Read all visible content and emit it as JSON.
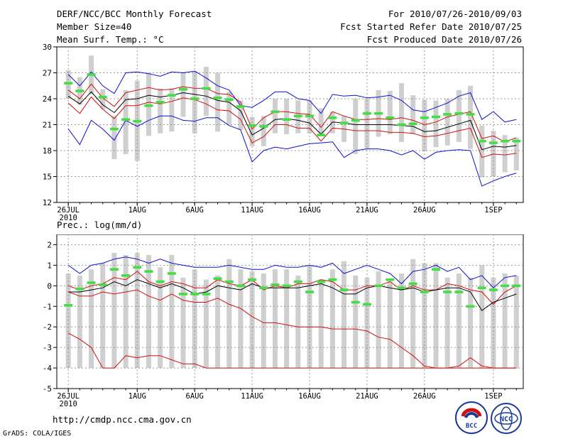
{
  "header": {
    "title": "DERF/NCC/BCC Monthly Forecast",
    "member_size": "Member Size=40",
    "variable_top": "Mean Surf. Temp.: °C",
    "for_period": "For 2010/07/26-2010/09/03",
    "fcst_started": "Fcst Started Refer Date 2010/07/25",
    "fcst_produced": "Fcst Produced Date 2010/07/26"
  },
  "footer": {
    "url": "http://cmdp.ncc.cma.gov.cn",
    "grads_credit": "GrADS: COLA/IGES",
    "logo_bcc": "BCC",
    "logo_ncc": "NCC"
  },
  "colors": {
    "box": "#cfcfcf",
    "mean_marker": "#44dd44",
    "envelope": "#1010d0",
    "spread": "#d01010",
    "median": "#000000",
    "grid": "#999999"
  },
  "chart_data": [
    {
      "type": "boxplot",
      "title": "Mean Surf. Temp.: °C",
      "xlabel": "",
      "ylabel": "°C",
      "ylim": [
        12,
        30
      ],
      "yticks": [
        12,
        15,
        18,
        21,
        24,
        27,
        30
      ],
      "xlim": [
        -1,
        39.6
      ],
      "xticks": [
        {
          "day": 0,
          "label": "26JUL",
          "sublabel": "2010"
        },
        {
          "day": 6,
          "label": "1AUG"
        },
        {
          "day": 11,
          "label": "6AUG"
        },
        {
          "day": 16,
          "label": "11AUG"
        },
        {
          "day": 21,
          "label": "16AUG"
        },
        {
          "day": 26,
          "label": "21AUG"
        },
        {
          "day": 31,
          "label": "26AUG"
        },
        {
          "day": 37,
          "label": "1SEP"
        }
      ],
      "grid": true,
      "days": [
        0,
        1,
        2,
        3,
        4,
        5,
        6,
        7,
        8,
        9,
        10,
        11,
        12,
        13,
        14,
        15,
        16,
        17,
        18,
        19,
        20,
        21,
        22,
        23,
        24,
        25,
        26,
        27,
        28,
        29,
        30,
        31,
        32,
        33,
        34,
        35,
        36,
        37,
        38,
        39
      ],
      "box_low": [
        24.0,
        23.3,
        24.5,
        22.8,
        17.0,
        17.6,
        16.8,
        19.7,
        20.0,
        20.2,
        21.9,
        20.0,
        22.0,
        20.2,
        21.0,
        20.4,
        18.5,
        18.5,
        20.0,
        19.9,
        20.0,
        20.0,
        20.0,
        20.0,
        19.0,
        17.6,
        18.2,
        19.6,
        19.9,
        19.0,
        19.9,
        17.9,
        18.4,
        18.6,
        19.0,
        18.2,
        14.9,
        15.0,
        15.5,
        15.7
      ],
      "box_high": [
        27.3,
        26.5,
        29.0,
        25.1,
        22.0,
        25.0,
        26.1,
        27.0,
        25.2,
        25.2,
        27.1,
        27.2,
        27.7,
        27.0,
        24.8,
        23.8,
        21.9,
        22.0,
        24.0,
        24.0,
        23.8,
        23.8,
        22.9,
        22.5,
        22.0,
        24.0,
        24.0,
        25.0,
        24.9,
        25.8,
        24.4,
        23.9,
        23.8,
        24.0,
        25.0,
        25.5,
        20.9,
        20.3,
        19.8,
        19.5
      ],
      "mean": [
        25.8,
        24.9,
        26.8,
        24.2,
        20.5,
        21.6,
        21.4,
        23.2,
        23.6,
        24.4,
        25.1,
        24.0,
        25.2,
        24.1,
        23.9,
        23.1,
        20.9,
        20.8,
        22.5,
        21.6,
        22.0,
        22.0,
        19.8,
        21.8,
        21.2,
        21.5,
        22.3,
        22.3,
        21.8,
        21.0,
        21.1,
        21.8,
        21.9,
        22.2,
        22.3,
        22.2,
        19.1,
        18.9,
        19.1,
        19.1
      ],
      "series": [
        {
          "name": "max",
          "color": "#1010d0",
          "values": [
            20.5,
            18.7,
            21.5,
            20.5,
            19.2,
            21.5,
            20.8,
            21.5,
            22.0,
            22.0,
            21.5,
            21.4,
            21.8,
            21.8,
            20.9,
            20.4,
            16.7,
            18.0,
            18.4,
            18.2,
            18.5,
            18.8,
            18.9,
            19.0,
            17.2,
            18.0,
            18.2,
            18.2,
            18.0,
            17.5,
            18.0,
            17.0,
            17.8,
            18.0,
            18.1,
            18.0,
            13.9,
            14.5,
            15.0,
            15.4
          ]
        },
        {
          "name": "p75",
          "color": "#d01010",
          "values": [
            25.0,
            24.0,
            25.7,
            24.1,
            23.1,
            24.7,
            25.0,
            25.3,
            25.0,
            25.1,
            25.4,
            25.2,
            25.2,
            24.6,
            24.5,
            23.6,
            20.5,
            21.8,
            22.5,
            22.5,
            22.3,
            22.2,
            20.7,
            22.5,
            22.0,
            21.6,
            21.6,
            21.7,
            21.6,
            21.8,
            21.5,
            21.0,
            21.3,
            21.9,
            22.2,
            22.5,
            19.4,
            19.7,
            19.0,
            19.5
          ]
        },
        {
          "name": "median",
          "color": "#000000",
          "values": [
            24.3,
            23.4,
            24.8,
            23.3,
            22.4,
            23.9,
            24.0,
            24.4,
            24.2,
            24.4,
            24.7,
            24.5,
            24.3,
            23.8,
            23.6,
            22.6,
            19.8,
            20.6,
            21.6,
            21.7,
            21.5,
            21.2,
            19.9,
            21.3,
            21.2,
            21.0,
            21.0,
            21.0,
            21.0,
            20.9,
            20.8,
            20.2,
            20.3,
            20.7,
            21.1,
            21.5,
            18.1,
            18.5,
            18.4,
            18.6
          ]
        },
        {
          "name": "p25",
          "color": "#d01010",
          "values": [
            23.5,
            22.3,
            24.2,
            22.8,
            21.7,
            23.2,
            23.2,
            23.6,
            23.4,
            23.7,
            24.1,
            23.9,
            23.4,
            22.7,
            22.6,
            21.6,
            18.9,
            19.6,
            21.0,
            21.0,
            20.6,
            20.6,
            19.1,
            20.6,
            20.5,
            20.3,
            20.3,
            20.3,
            20.1,
            20.1,
            20.0,
            19.6,
            19.7,
            20.0,
            20.3,
            20.6,
            17.2,
            17.6,
            17.5,
            17.7
          ]
        },
        {
          "name": "min",
          "color": "#1010d0",
          "values": [
            26.8,
            25.5,
            27.1,
            25.5,
            24.6,
            27.0,
            27.1,
            26.9,
            26.6,
            27.1,
            27.0,
            27.2,
            26.4,
            25.5,
            25.0,
            23.2,
            23.0,
            23.8,
            24.8,
            24.8,
            24.0,
            23.8,
            22.3,
            24.5,
            24.3,
            24.4,
            24.1,
            24.2,
            24.4,
            23.8,
            22.7,
            22.5,
            23.0,
            23.5,
            24.3,
            24.7,
            21.6,
            22.5,
            21.3,
            21.6
          ]
        }
      ]
    },
    {
      "type": "boxplot",
      "title": "Prec.: log(mm/d)",
      "xlabel": "",
      "ylabel": "log(mm/d)",
      "ylim": [
        -5,
        2.5
      ],
      "yticks": [
        -5,
        -4,
        -3,
        -2,
        -1,
        0,
        1,
        2
      ],
      "xlim": [
        -1,
        39.6
      ],
      "xticks": [
        {
          "day": 0,
          "label": "26JUL",
          "sublabel": "2010"
        },
        {
          "day": 6,
          "label": "1AUG"
        },
        {
          "day": 11,
          "label": "6AUG"
        },
        {
          "day": 16,
          "label": "11AUG"
        },
        {
          "day": 21,
          "label": "16AUG"
        },
        {
          "day": 26,
          "label": "21AUG"
        },
        {
          "day": 31,
          "label": "26AUG"
        },
        {
          "day": 37,
          "label": "1SEP"
        }
      ],
      "grid": true,
      "days": [
        0,
        1,
        2,
        3,
        4,
        5,
        6,
        7,
        8,
        9,
        10,
        11,
        12,
        13,
        14,
        15,
        16,
        17,
        18,
        19,
        20,
        21,
        22,
        23,
        24,
        25,
        26,
        27,
        28,
        29,
        30,
        31,
        32,
        33,
        34,
        35,
        36,
        37,
        38,
        39
      ],
      "box_low": [
        -4,
        -4,
        -4,
        -4,
        -4,
        -4,
        -4,
        -4,
        -4,
        -4,
        -4,
        -4,
        -4,
        -4,
        -4,
        -4,
        -4,
        -4,
        -4,
        -4,
        -4,
        -4,
        -4,
        -4,
        -4,
        -4,
        -4,
        -4,
        -4,
        -4,
        -4,
        -4,
        -4,
        -4,
        -4,
        -4,
        -4,
        -4,
        -4,
        -4
      ],
      "box_high": [
        0.6,
        0.5,
        0.8,
        1.1,
        1.6,
        1.5,
        1.6,
        1.5,
        0.9,
        1.5,
        0.4,
        0.8,
        0.3,
        0.5,
        1.3,
        0.8,
        0.7,
        0.6,
        0.8,
        0.8,
        0.5,
        1.0,
        0.3,
        0.8,
        1.2,
        0.5,
        0.4,
        0.7,
        0.3,
        0.6,
        1.3,
        1.1,
        1.1,
        0.4,
        0.6,
        0.4,
        1.0,
        0.4,
        0.6,
        0.5
      ],
      "mean": [
        -0.95,
        -0.15,
        0.15,
        0.05,
        0.8,
        0.5,
        0.9,
        0.7,
        0.2,
        0.6,
        -0.4,
        -0.4,
        -0.4,
        0.35,
        0.2,
        0.0,
        0.3,
        -0.1,
        0.05,
        0.0,
        0.2,
        -0.3,
        0.2,
        0.3,
        -0.2,
        -0.8,
        -0.9,
        0.0,
        0.3,
        -0.1,
        0.1,
        -0.3,
        0.8,
        -0.3,
        -0.3,
        -1.0,
        -0.1,
        -0.2,
        0.0,
        0.0
      ],
      "series": [
        {
          "name": "max",
          "color": "#1010d0",
          "values": [
            1.0,
            0.6,
            1.0,
            1.1,
            1.3,
            1.4,
            1.3,
            1.1,
            1.3,
            1.1,
            1.0,
            0.9,
            0.9,
            0.9,
            1.0,
            0.9,
            0.8,
            0.8,
            1.0,
            0.9,
            0.9,
            1.0,
            0.9,
            1.1,
            0.6,
            0.8,
            1.0,
            0.8,
            0.6,
            0.1,
            0.7,
            0.8,
            1.0,
            0.7,
            0.9,
            0.3,
            0.5,
            -0.1,
            0.4,
            0.5
          ]
        },
        {
          "name": "p75",
          "color": "#d01010",
          "values": [
            0.0,
            -0.2,
            0.0,
            0.1,
            0.4,
            0.3,
            0.7,
            0.2,
            0.0,
            0.2,
            0.1,
            -0.1,
            -0.1,
            0.3,
            0.1,
            0.0,
            0.3,
            -0.2,
            0.0,
            -0.1,
            0.1,
            0.1,
            0.3,
            0.2,
            -0.2,
            -0.2,
            0.0,
            0.0,
            0.2,
            -0.2,
            0.0,
            -0.2,
            -0.2,
            0.1,
            0.0,
            -0.2,
            -0.3,
            -0.9,
            -0.3,
            0.0
          ]
        },
        {
          "name": "median",
          "color": "#000000",
          "values": [
            -0.3,
            -0.3,
            -0.2,
            -0.1,
            0.2,
            0.0,
            0.3,
            0.1,
            -0.1,
            0.1,
            -0.1,
            -0.4,
            -0.3,
            0.0,
            -0.1,
            -0.2,
            0.1,
            -0.1,
            -0.1,
            -0.1,
            -0.1,
            0.0,
            0.1,
            -0.1,
            -0.4,
            -0.4,
            -0.1,
            0.0,
            -0.1,
            -0.2,
            -0.1,
            -0.3,
            -0.2,
            -0.1,
            -0.1,
            -0.3,
            -1.2,
            -0.8,
            -0.6,
            -0.4
          ]
        },
        {
          "name": "p25",
          "color": "#d01010",
          "values": [
            -0.3,
            -0.5,
            -0.5,
            -0.3,
            -0.4,
            -0.3,
            -0.2,
            -0.5,
            -0.7,
            -0.4,
            -0.7,
            -0.8,
            -0.8,
            -0.6,
            -0.9,
            -1.1,
            -1.5,
            -1.8,
            -1.8,
            -1.9,
            -2.0,
            -2.0,
            -2.0,
            -2.1,
            -2.1,
            -2.1,
            -2.2,
            -2.5,
            -2.6,
            -3.0,
            -3.4,
            -3.9,
            -4.0,
            -4.0,
            -4.0,
            -4.0,
            -4.0,
            -4.0,
            -4.0,
            -4.0
          ]
        },
        {
          "name": "min",
          "color": "#d01010",
          "values": [
            -2.3,
            -2.6,
            -3.0,
            -4.0,
            -4.0,
            -3.4,
            -3.5,
            -3.4,
            -3.4,
            -3.6,
            -3.8,
            -3.8,
            -4.0,
            -4.0,
            -4.0,
            -4.0,
            -4.0,
            -4.0,
            -4.0,
            -4.0,
            -4.0,
            -4.0,
            -4.0,
            -4.0,
            -4.0,
            -4.0,
            -4.0,
            -4.0,
            -4.0,
            -4.0,
            -4.0,
            -4.0,
            -4.0,
            -4.0,
            -3.9,
            -3.5,
            -3.9,
            -4.0,
            -4.0,
            -4.0
          ]
        }
      ]
    }
  ]
}
